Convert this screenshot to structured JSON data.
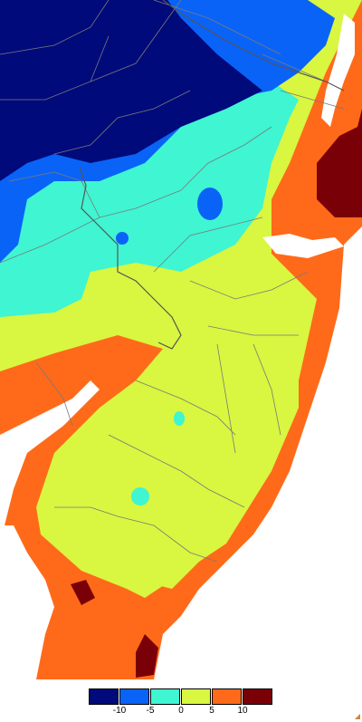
{
  "map": {
    "land_colors": {
      "navy": "#000a7a",
      "blue": "#0a63f7",
      "cyan": "#3ff5d2",
      "yellow": "#d9f640",
      "orange": "#ff6a1a",
      "maroon": "#7a0008",
      "water": "#ffffff",
      "border": "#7a7a7a"
    }
  },
  "legend": {
    "colors": [
      "#000a7a",
      "#0a63f7",
      "#3ff5d2",
      "#d9f640",
      "#ff6a1a",
      "#7a0008"
    ],
    "ticks": [
      "-10",
      "-5",
      "0",
      "5",
      "10"
    ]
  }
}
